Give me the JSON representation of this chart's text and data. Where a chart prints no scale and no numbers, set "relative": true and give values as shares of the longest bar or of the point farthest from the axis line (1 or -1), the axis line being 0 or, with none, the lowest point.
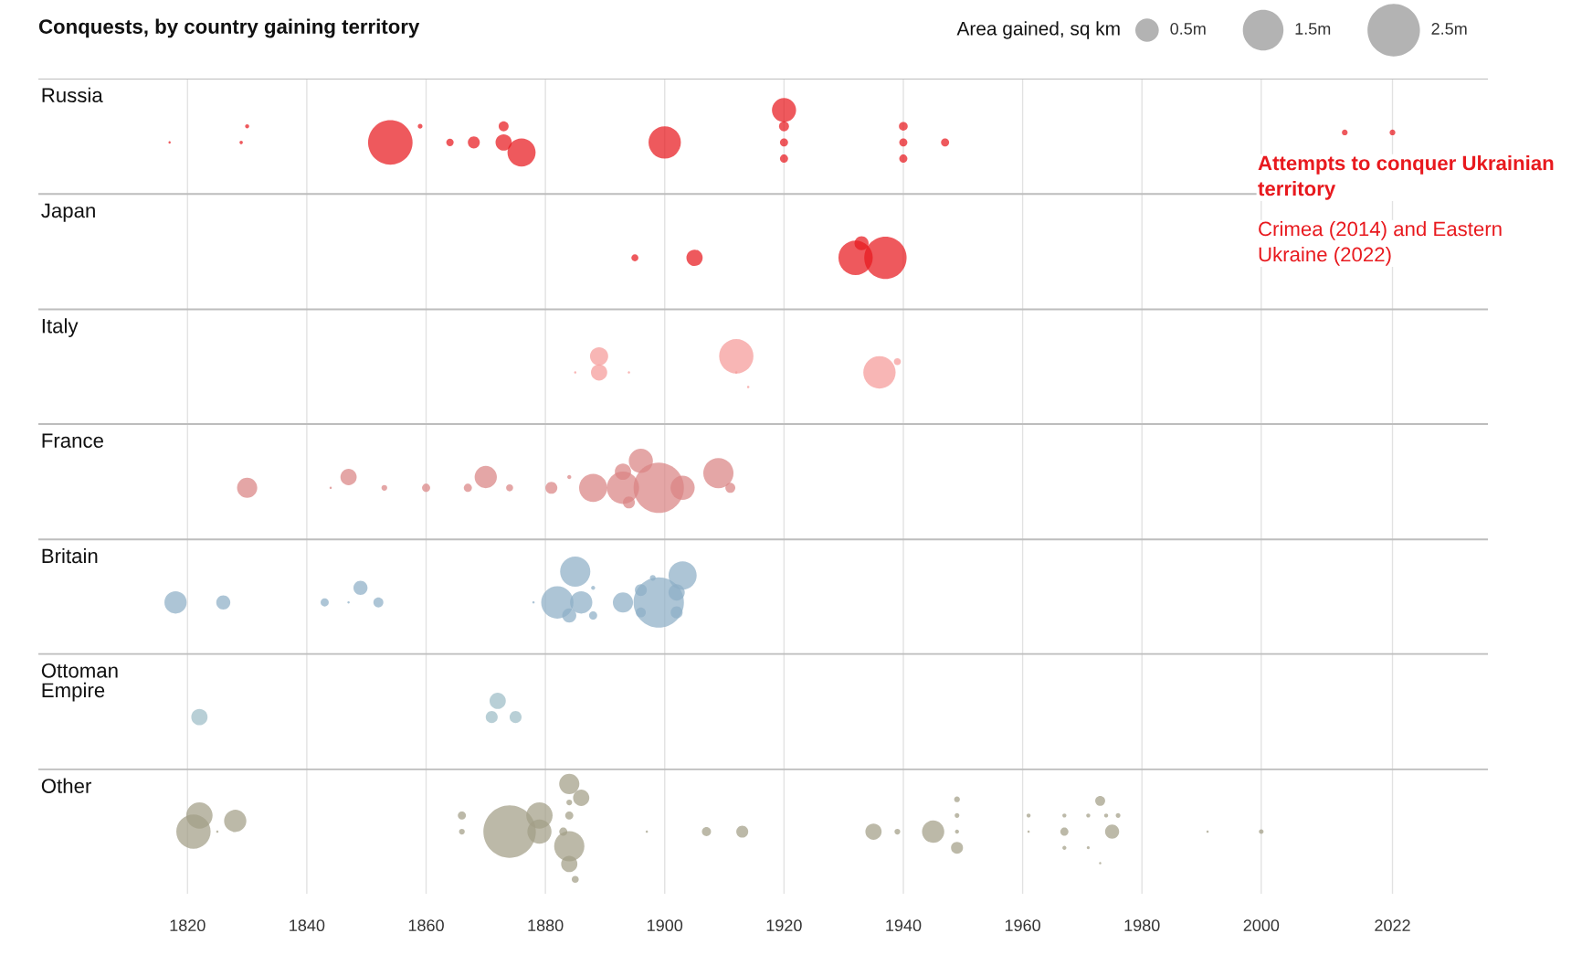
{
  "chart_data": {
    "type": "bubble",
    "title": "Conquests, by country gaining territory",
    "legend_title": "Area gained, sq km",
    "size_legend": [
      {
        "value": 0.5,
        "label": "0.5m"
      },
      {
        "value": 1.5,
        "label": "1.5m"
      },
      {
        "value": 2.5,
        "label": "2.5m"
      }
    ],
    "annotations": [
      "Russia",
      "Japan",
      "Italy",
      "France",
      "Britain",
      "Ottoman Empire",
      "Other",
      "Attempts to conquer Ukrainian territory",
      "Crimea (2014) and Eastern Ukraine (2022)"
    ],
    "relative": true,
    "xlim": [
      1795,
      2038
    ],
    "xticks": [
      1820,
      1840,
      1860,
      1880,
      1900,
      1920,
      1940,
      1960,
      1980,
      2000,
      2022
    ],
    "grid": "x",
    "tick_labels": "x",
    "ref_lines": [
      {
        "axis": "y",
        "value": 1.041,
        "color": "#bdbdbd"
      },
      {
        "axis": "y",
        "value": 0.891,
        "color": "#bdbdbd"
      },
      {
        "axis": "y",
        "value": 0.741,
        "color": "#bdbdbd"
      },
      {
        "axis": "y",
        "value": 0.592,
        "color": "#bdbdbd"
      },
      {
        "axis": "y",
        "value": 0.442,
        "color": "#bdbdbd"
      },
      {
        "axis": "y",
        "value": 0.293,
        "color": "#bdbdbd"
      },
      {
        "axis": "y",
        "value": 0.143,
        "color": "#bdbdbd"
      }
    ],
    "series": [
      {
        "color": "#e8191e",
        "x": [
          1817,
          1829,
          1830,
          1854,
          1859,
          1864,
          1868,
          1873,
          1873,
          1876,
          1900,
          1920,
          1920,
          1920,
          1920,
          1940,
          1940,
          1940,
          1947,
          2014,
          2022
        ],
        "values": [
          0.958,
          0.958,
          0.979,
          0.958,
          0.979,
          0.958,
          0.958,
          0.979,
          0.958,
          0.945,
          0.958,
          1.0,
          0.979,
          0.958,
          0.937,
          0.979,
          0.958,
          0.937,
          0.958,
          0.971,
          0.971
        ],
        "sizes": [
          0.005,
          0.01,
          0.015,
          1.8,
          0.02,
          0.05,
          0.13,
          0.09,
          0.24,
          0.72,
          0.95,
          0.53,
          0.09,
          0.06,
          0.06,
          0.07,
          0.06,
          0.06,
          0.06,
          0.03,
          0.03
        ]
      },
      {
        "color": "#e8191e",
        "x": [
          1895,
          1905,
          1932,
          1933,
          1937
        ],
        "values": [
          0.808,
          0.808,
          0.808,
          0.827,
          0.808
        ],
        "sizes": [
          0.045,
          0.24,
          1.07,
          0.18,
          1.63
        ]
      },
      {
        "color": "#f59a98",
        "x": [
          1885,
          1889,
          1889,
          1894,
          1912,
          1912,
          1914,
          1936,
          1939
        ],
        "values": [
          0.659,
          0.68,
          0.659,
          0.659,
          0.68,
          0.659,
          0.64,
          0.659,
          0.673
        ],
        "sizes": [
          0.005,
          0.3,
          0.24,
          0.005,
          1.07,
          0.005,
          0.005,
          0.95,
          0.045
        ]
      },
      {
        "color": "#d98484",
        "x": [
          1830,
          1844,
          1847,
          1853,
          1860,
          1867,
          1870,
          1874,
          1881,
          1884,
          1888,
          1893,
          1893,
          1894,
          1896,
          1899,
          1903,
          1909,
          1911
        ],
        "values": [
          0.509,
          0.509,
          0.523,
          0.509,
          0.509,
          0.509,
          0.523,
          0.509,
          0.509,
          0.523,
          0.509,
          0.509,
          0.53,
          0.49,
          0.544,
          0.509,
          0.509,
          0.528,
          0.509
        ],
        "sizes": [
          0.37,
          0.005,
          0.24,
          0.03,
          0.06,
          0.06,
          0.45,
          0.045,
          0.13,
          0.015,
          0.72,
          0.95,
          0.24,
          0.13,
          0.53,
          2.3,
          0.53,
          0.83,
          0.09
        ]
      },
      {
        "color": "#8eaec6",
        "x": [
          1818,
          1826,
          1843,
          1847,
          1849,
          1852,
          1878,
          1882,
          1885,
          1884,
          1886,
          1888,
          1888,
          1893,
          1896,
          1896,
          1899,
          1902,
          1902,
          1903,
          1898
        ],
        "values": [
          0.36,
          0.36,
          0.36,
          0.36,
          0.379,
          0.36,
          0.36,
          0.36,
          0.4,
          0.343,
          0.36,
          0.343,
          0.379,
          0.36,
          0.376,
          0.347,
          0.36,
          0.373,
          0.347,
          0.395,
          0.392
        ],
        "sizes": [
          0.45,
          0.18,
          0.06,
          0.005,
          0.18,
          0.09,
          0.005,
          0.95,
          0.83,
          0.18,
          0.45,
          0.06,
          0.015,
          0.37,
          0.13,
          0.09,
          2.3,
          0.24,
          0.13,
          0.72,
          0.03
        ]
      },
      {
        "color": "#9dbdc6",
        "x": [
          1822,
          1872,
          1871,
          1875
        ],
        "values": [
          0.211,
          0.232,
          0.211,
          0.211
        ],
        "sizes": [
          0.24,
          0.24,
          0.13,
          0.13
        ]
      },
      {
        "color": "#a29e86",
        "x": [
          1821,
          1822,
          1825,
          1828,
          1866,
          1866,
          1874,
          1879,
          1879,
          1884,
          1886,
          1884,
          1883,
          1884,
          1884,
          1885,
          1884,
          1897,
          1907,
          1913,
          1935,
          1939,
          1945,
          1949,
          1949,
          1949,
          1949,
          1961,
          1961,
          1967,
          1967,
          1967,
          1971,
          1971,
          1973,
          1973,
          1974,
          1975,
          1976,
          1991,
          2000
        ],
        "values": [
          0.062,
          0.083,
          0.062,
          0.076,
          0.083,
          0.062,
          0.062,
          0.083,
          0.062,
          0.124,
          0.106,
          0.083,
          0.062,
          0.043,
          0.02,
          0.0,
          0.1,
          0.062,
          0.062,
          0.062,
          0.062,
          0.062,
          0.062,
          0.104,
          0.083,
          0.062,
          0.041,
          0.083,
          0.062,
          0.083,
          0.062,
          0.041,
          0.083,
          0.041,
          0.102,
          0.021,
          0.083,
          0.062,
          0.083,
          0.062,
          0.062
        ],
        "sizes": [
          1.07,
          0.63,
          0.005,
          0.45,
          0.06,
          0.03,
          2.5,
          0.63,
          0.53,
          0.37,
          0.24,
          0.06,
          0.06,
          0.83,
          0.24,
          0.045,
          0.03,
          0.005,
          0.075,
          0.13,
          0.24,
          0.03,
          0.45,
          0.03,
          0.02,
          0.015,
          0.13,
          0.015,
          0.005,
          0.015,
          0.06,
          0.015,
          0.015,
          0.008,
          0.09,
          0.005,
          0.015,
          0.18,
          0.02,
          0.005,
          0.02
        ]
      }
    ]
  }
}
